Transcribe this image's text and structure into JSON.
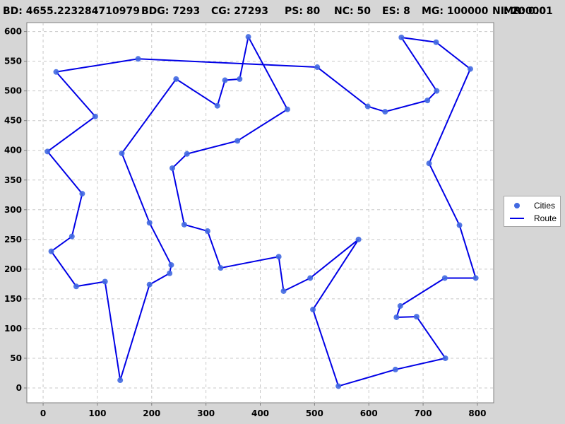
{
  "header": {
    "bd": "BD: 4655.223284710979",
    "bdg": "BDG: 7293",
    "cg": "CG: 27293",
    "ps": "PS: 80",
    "nc": "NC: 50",
    "es": "ES: 8",
    "mg": "MG: 100000",
    "ni": "NI: 20000",
    "mr": "MR: 0.01"
  },
  "legend": {
    "cities_label": "Cities",
    "route_label": "Route"
  },
  "colors": {
    "cities": "#4169e1",
    "route": "#0000e6",
    "background": "#d6d6d6"
  },
  "chart_data": {
    "type": "scatter",
    "xlim": [
      -30,
      830
    ],
    "ylim": [
      -25,
      615
    ],
    "x_ticks": [
      0,
      100,
      200,
      300,
      400,
      500,
      600,
      700,
      800
    ],
    "y_ticks": [
      0,
      50,
      100,
      150,
      200,
      250,
      300,
      350,
      400,
      450,
      500,
      550,
      600
    ],
    "grid": true,
    "legend_position": "right",
    "series": [
      {
        "name": "Cities",
        "style": "points",
        "points": [
          [
            24,
            532
          ],
          [
            175,
            554
          ],
          [
            505,
            540
          ],
          [
            598,
            474
          ],
          [
            630,
            465
          ],
          [
            708,
            484
          ],
          [
            725,
            500
          ],
          [
            660,
            590
          ],
          [
            724,
            582
          ],
          [
            787,
            537
          ],
          [
            711,
            378
          ],
          [
            767,
            274
          ],
          [
            797,
            185
          ],
          [
            740,
            185
          ],
          [
            658,
            138
          ],
          [
            651,
            119
          ],
          [
            688,
            120
          ],
          [
            741,
            50
          ],
          [
            649,
            31
          ],
          [
            544,
            3
          ],
          [
            497,
            132
          ],
          [
            581,
            250
          ],
          [
            492,
            185
          ],
          [
            443,
            163
          ],
          [
            434,
            221
          ],
          [
            327,
            202
          ],
          [
            303,
            264
          ],
          [
            260,
            275
          ],
          [
            238,
            370
          ],
          [
            265,
            394
          ],
          [
            358,
            416
          ],
          [
            450,
            469
          ],
          [
            378,
            591
          ],
          [
            362,
            520
          ],
          [
            335,
            518
          ],
          [
            321,
            475
          ],
          [
            245,
            520
          ],
          [
            145,
            395
          ],
          [
            196,
            278
          ],
          [
            236,
            207
          ],
          [
            233,
            193
          ],
          [
            196,
            174
          ],
          [
            142,
            13
          ],
          [
            114,
            179
          ],
          [
            61,
            171
          ],
          [
            15,
            230
          ],
          [
            53,
            255
          ],
          [
            72,
            327
          ],
          [
            8,
            398
          ],
          [
            96,
            457
          ]
        ]
      },
      {
        "name": "Route",
        "style": "line",
        "points": [
          [
            24,
            532
          ],
          [
            175,
            554
          ],
          [
            505,
            540
          ],
          [
            598,
            474
          ],
          [
            630,
            465
          ],
          [
            708,
            484
          ],
          [
            725,
            500
          ],
          [
            660,
            590
          ],
          [
            724,
            582
          ],
          [
            787,
            537
          ],
          [
            711,
            378
          ],
          [
            767,
            274
          ],
          [
            797,
            185
          ],
          [
            740,
            185
          ],
          [
            658,
            138
          ],
          [
            651,
            119
          ],
          [
            688,
            120
          ],
          [
            741,
            50
          ],
          [
            649,
            31
          ],
          [
            544,
            3
          ],
          [
            497,
            132
          ],
          [
            581,
            250
          ],
          [
            492,
            185
          ],
          [
            443,
            163
          ],
          [
            434,
            221
          ],
          [
            327,
            202
          ],
          [
            303,
            264
          ],
          [
            260,
            275
          ],
          [
            238,
            370
          ],
          [
            265,
            394
          ],
          [
            358,
            416
          ],
          [
            450,
            469
          ],
          [
            378,
            591
          ],
          [
            362,
            520
          ],
          [
            335,
            518
          ],
          [
            321,
            475
          ],
          [
            245,
            520
          ],
          [
            145,
            395
          ],
          [
            196,
            278
          ],
          [
            236,
            207
          ],
          [
            233,
            193
          ],
          [
            196,
            174
          ],
          [
            142,
            13
          ],
          [
            114,
            179
          ],
          [
            61,
            171
          ],
          [
            15,
            230
          ],
          [
            53,
            255
          ],
          [
            72,
            327
          ],
          [
            8,
            398
          ],
          [
            96,
            457
          ],
          [
            24,
            532
          ]
        ]
      }
    ]
  }
}
